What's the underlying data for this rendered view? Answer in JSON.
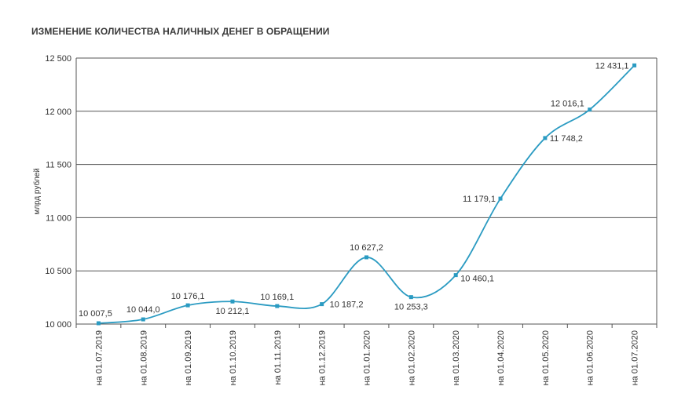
{
  "title": "ИЗМЕНЕНИЕ КОЛИЧЕСТВА НАЛИЧНЫХ ДЕНЕГ В ОБРАЩЕНИИ",
  "chart_data": {
    "type": "line",
    "title": "ИЗМЕНЕНИЕ КОЛИЧЕСТВА НАЛИЧНЫХ ДЕНЕГ В ОБРАЩЕНИИ",
    "ylabel": "млрд рублей",
    "xlabel": "",
    "ylim": [
      10000,
      12500
    ],
    "yticks": [
      "10 000",
      "10 500",
      "11 000",
      "11 500",
      "12 000",
      "12 500"
    ],
    "ytick_values": [
      10000,
      10500,
      11000,
      11500,
      12000,
      12500
    ],
    "grid": true,
    "line_color": "#2b9bc2",
    "categories": [
      "на 01.07.2019",
      "на 01.08.2019",
      "на 01.09.2019",
      "на 01.10.2019",
      "на 01.11.2019",
      "на 01.12.2019",
      "на 01.01.2020",
      "на 01.02.2020",
      "на 01.03.2020",
      "на 01.04.2020",
      "на 01.05.2020",
      "на 01.06.2020",
      "на 01.07.2020"
    ],
    "values": [
      10007.5,
      10044.0,
      10176.1,
      10212.1,
      10169.1,
      10187.2,
      10627.2,
      10253.3,
      10460.1,
      11179.1,
      11748.2,
      12016.1,
      12431.1
    ],
    "labels": [
      "10 007,5",
      "10 044,0",
      "10 176,1",
      "10 212,1",
      "10 169,1",
      "10 187,2",
      "10 627,2",
      "10 253,3",
      "10 460,1",
      "11 179,1",
      "11 748,2",
      "12 016,1",
      "12 431,1"
    ]
  }
}
